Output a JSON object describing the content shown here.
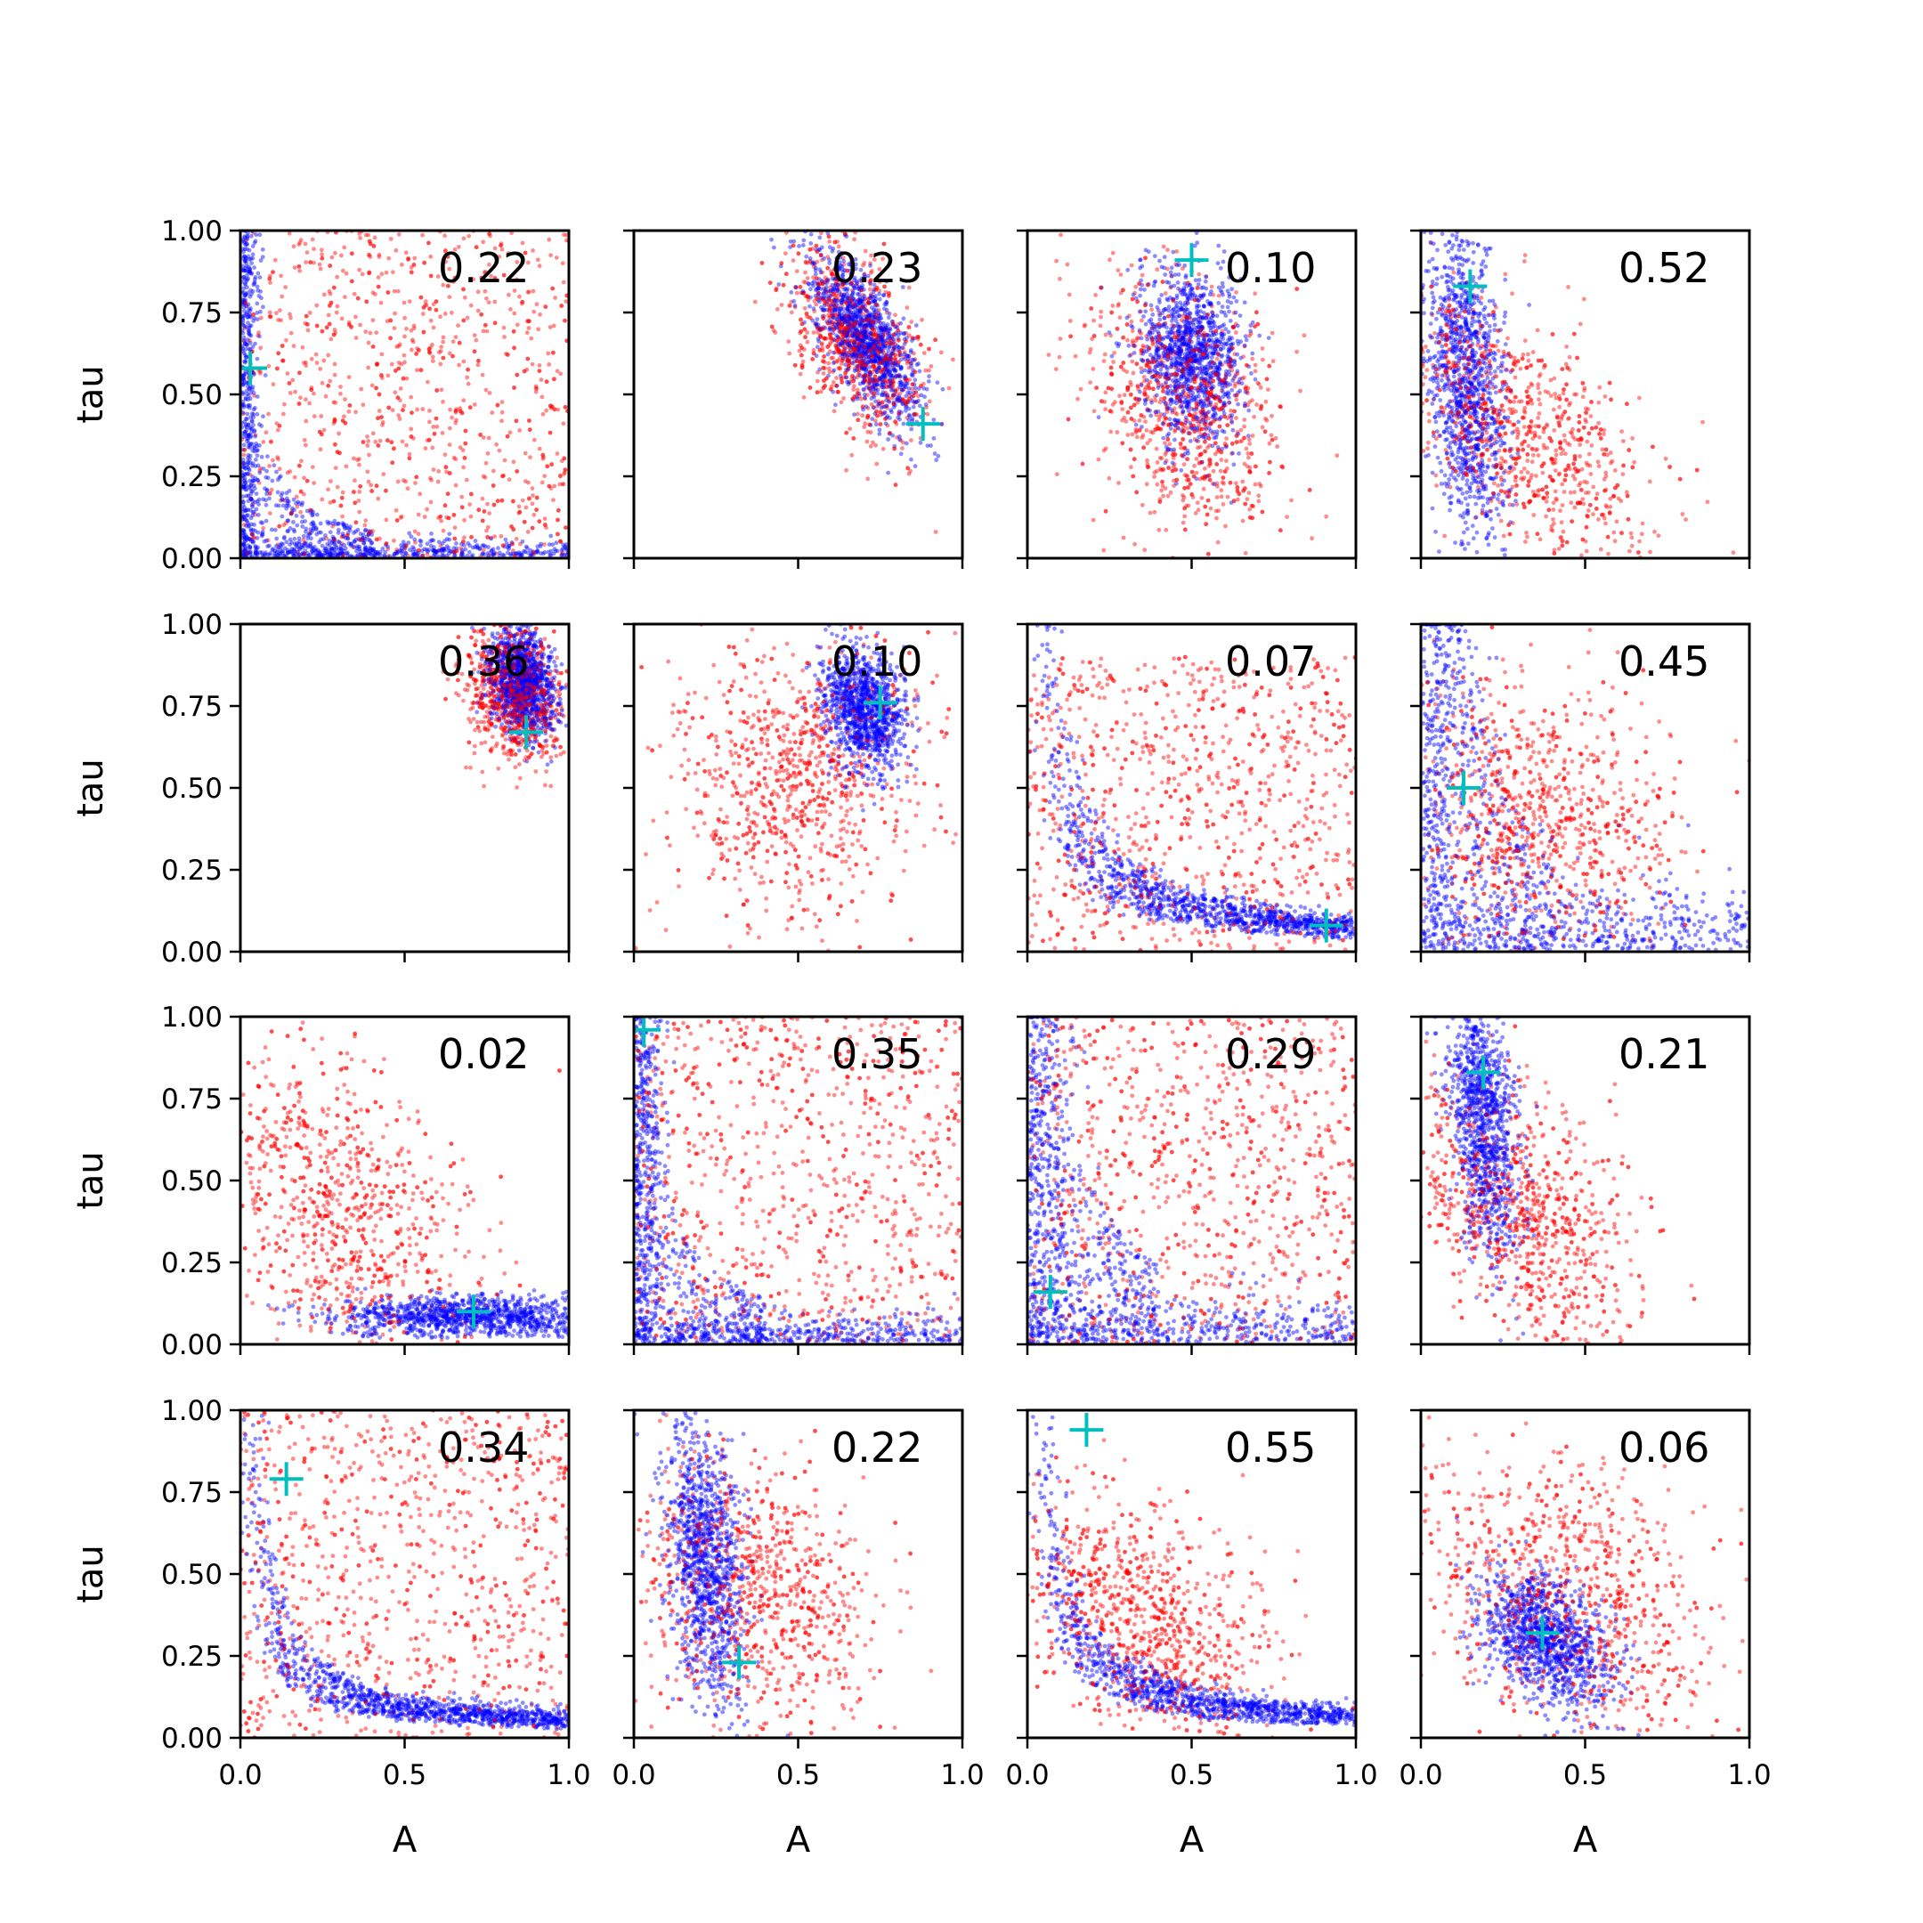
{
  "chart_data": {
    "type": "scatter",
    "layout": "4x4 grid of subplots",
    "shared_axes": true,
    "xlabel": "A",
    "ylabel": "tau",
    "xlim": [
      0.0,
      1.0
    ],
    "ylim": [
      0.0,
      1.0
    ],
    "x_ticks": [
      "0.0",
      "0.5",
      "1.0"
    ],
    "y_ticks": [
      "0.00",
      "0.25",
      "0.50",
      "0.75",
      "1.00"
    ],
    "grid": false,
    "colors": {
      "red_points": "#ff0000",
      "blue_points": "#0000ff",
      "marker": "#00bfbf"
    },
    "marker_symbol": "+",
    "panels": [
      {
        "annotation": "0.22",
        "marker": [
          0.03,
          0.58
        ],
        "red": {
          "shape": "uniform",
          "cx": 0.5,
          "cy": 0.5,
          "sx": 0.5,
          "sy": 0.5
        },
        "blue": {
          "shape": "lcurve",
          "k": 0.012
        }
      },
      {
        "annotation": "0.23",
        "marker": [
          0.88,
          0.41
        ],
        "red": {
          "shape": "blob",
          "cx": 0.68,
          "cy": 0.66,
          "sx": 0.1,
          "sy": 0.15,
          "rho": -0.5
        },
        "blue": {
          "shape": "blob",
          "cx": 0.7,
          "cy": 0.68,
          "sx": 0.08,
          "sy": 0.13,
          "rho": -0.7
        }
      },
      {
        "annotation": "0.10",
        "marker": [
          0.5,
          0.91
        ],
        "red": {
          "shape": "blob",
          "cx": 0.48,
          "cy": 0.48,
          "sx": 0.14,
          "sy": 0.2,
          "rho": -0.3
        },
        "blue": {
          "shape": "blob",
          "cx": 0.5,
          "cy": 0.62,
          "sx": 0.08,
          "sy": 0.13,
          "rho": -0.2
        }
      },
      {
        "annotation": "0.52",
        "marker": [
          0.15,
          0.83
        ],
        "red": {
          "shape": "blob",
          "cx": 0.28,
          "cy": 0.42,
          "sx": 0.2,
          "sy": 0.2,
          "rho": -0.6
        },
        "blue": {
          "shape": "blob",
          "cx": 0.14,
          "cy": 0.55,
          "sx": 0.06,
          "sy": 0.25,
          "rho": -0.3
        }
      },
      {
        "annotation": "0.36",
        "marker": [
          0.87,
          0.67
        ],
        "red": {
          "shape": "blob",
          "cx": 0.83,
          "cy": 0.79,
          "sx": 0.07,
          "sy": 0.1,
          "rho": -0.2
        },
        "blue": {
          "shape": "blob",
          "cx": 0.86,
          "cy": 0.83,
          "sx": 0.05,
          "sy": 0.08,
          "rho": -0.2
        }
      },
      {
        "annotation": "0.10",
        "marker": [
          0.75,
          0.76
        ],
        "red": {
          "shape": "blob",
          "cx": 0.5,
          "cy": 0.55,
          "sx": 0.2,
          "sy": 0.22,
          "rho": 0.1
        },
        "blue": {
          "shape": "blob",
          "cx": 0.7,
          "cy": 0.74,
          "sx": 0.06,
          "sy": 0.09,
          "rho": -0.2
        }
      },
      {
        "annotation": "0.07",
        "marker": [
          0.91,
          0.08
        ],
        "red": {
          "shape": "uniform",
          "cx": 0.5,
          "cy": 0.45,
          "sx": 0.5,
          "sy": 0.45
        },
        "blue": {
          "shape": "hyper",
          "k": 0.06
        }
      },
      {
        "annotation": "0.45",
        "marker": [
          0.13,
          0.5
        ],
        "red": {
          "shape": "blob",
          "cx": 0.35,
          "cy": 0.4,
          "sx": 0.2,
          "sy": 0.22,
          "rho": -0.2
        },
        "blue": {
          "shape": "lcurve",
          "k": 0.05
        }
      },
      {
        "annotation": "0.02",
        "marker": [
          0.71,
          0.1
        ],
        "red": {
          "shape": "blob",
          "cx": 0.28,
          "cy": 0.42,
          "sx": 0.22,
          "sy": 0.25,
          "rho": -0.4
        },
        "blue": {
          "shape": "tail",
          "cx": 0.7,
          "cy": 0.08,
          "sx": 0.2,
          "sy": 0.04
        }
      },
      {
        "annotation": "0.35",
        "marker": [
          0.03,
          0.96
        ],
        "red": {
          "shape": "uniform",
          "cx": 0.5,
          "cy": 0.5,
          "sx": 0.5,
          "sy": 0.5
        },
        "blue": {
          "shape": "lcurve",
          "k": 0.02
        }
      },
      {
        "annotation": "0.29",
        "marker": [
          0.07,
          0.16
        ],
        "red": {
          "shape": "uniform",
          "cx": 0.5,
          "cy": 0.5,
          "sx": 0.5,
          "sy": 0.5
        },
        "blue": {
          "shape": "lcurve",
          "k": 0.035
        }
      },
      {
        "annotation": "0.21",
        "marker": [
          0.19,
          0.83
        ],
        "red": {
          "shape": "blob",
          "cx": 0.3,
          "cy": 0.4,
          "sx": 0.18,
          "sy": 0.22,
          "rho": -0.5
        },
        "blue": {
          "shape": "blob",
          "cx": 0.19,
          "cy": 0.7,
          "sx": 0.05,
          "sy": 0.22,
          "rho": -0.3
        }
      },
      {
        "annotation": "0.34",
        "marker": [
          0.14,
          0.79
        ],
        "red": {
          "shape": "uniform",
          "cx": 0.5,
          "cy": 0.5,
          "sx": 0.5,
          "sy": 0.5
        },
        "blue": {
          "shape": "hyper",
          "k": 0.04
        }
      },
      {
        "annotation": "0.22",
        "marker": [
          0.32,
          0.23
        ],
        "red": {
          "shape": "blob",
          "cx": 0.35,
          "cy": 0.45,
          "sx": 0.2,
          "sy": 0.22,
          "rho": -0.3
        },
        "blue": {
          "shape": "blob",
          "cx": 0.22,
          "cy": 0.55,
          "sx": 0.06,
          "sy": 0.22,
          "rho": -0.3
        }
      },
      {
        "annotation": "0.55",
        "marker": [
          0.18,
          0.94
        ],
        "red": {
          "shape": "blob",
          "cx": 0.35,
          "cy": 0.35,
          "sx": 0.2,
          "sy": 0.2,
          "rho": -0.5
        },
        "blue": {
          "shape": "hyper",
          "k": 0.05
        }
      },
      {
        "annotation": "0.06",
        "marker": [
          0.37,
          0.32
        ],
        "red": {
          "shape": "blob",
          "cx": 0.45,
          "cy": 0.45,
          "sx": 0.22,
          "sy": 0.22,
          "rho": -0.3
        },
        "blue": {
          "shape": "blob",
          "cx": 0.38,
          "cy": 0.3,
          "sx": 0.1,
          "sy": 0.1,
          "rho": -0.4
        }
      }
    ]
  }
}
